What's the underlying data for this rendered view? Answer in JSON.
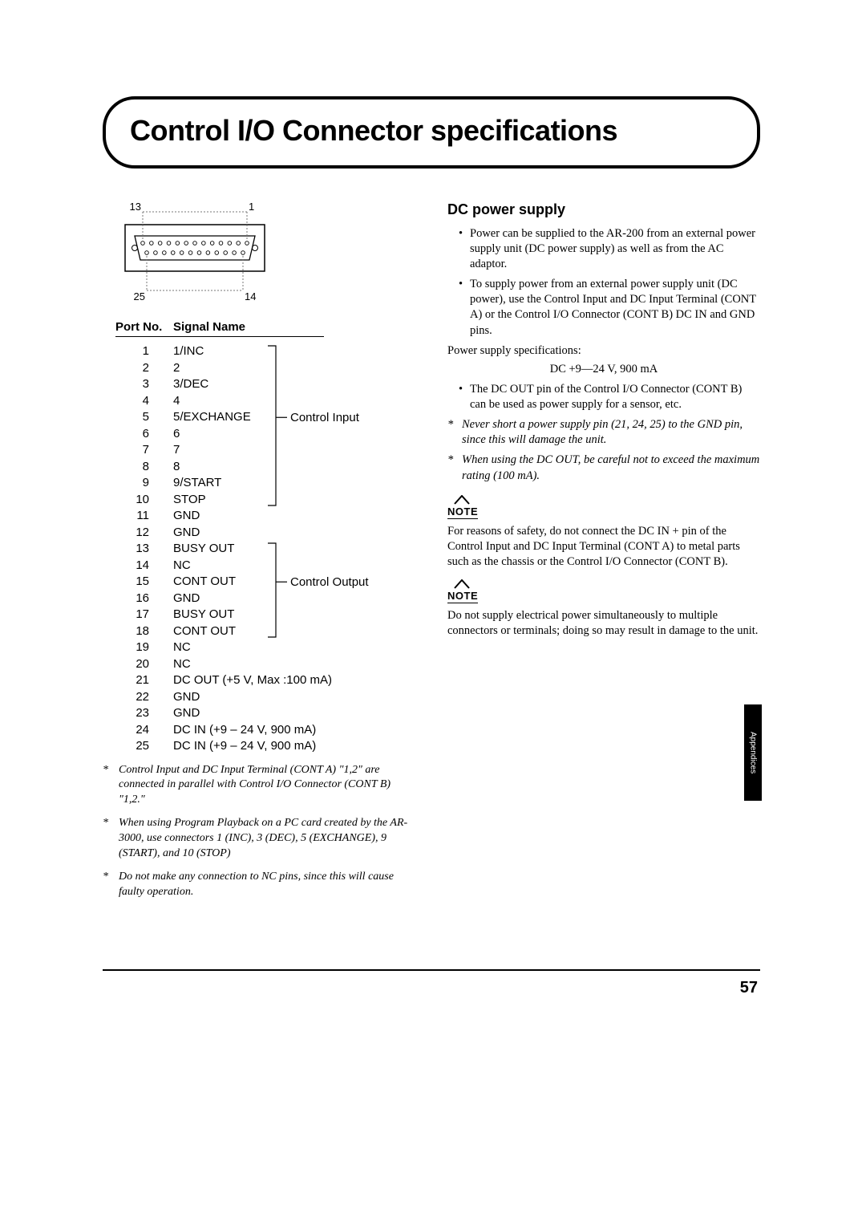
{
  "title": "Control I/O Connector specifications",
  "connector": {
    "pin_tl": "13",
    "pin_tr": "1",
    "pin_bl": "25",
    "pin_br": "14",
    "top_pins": 13,
    "bottom_pins": 12
  },
  "table": {
    "head_port": "Port No.",
    "head_signal": "Signal Name",
    "rows": [
      {
        "n": "1",
        "s": "1/INC"
      },
      {
        "n": "2",
        "s": "2"
      },
      {
        "n": "3",
        "s": "3/DEC"
      },
      {
        "n": "4",
        "s": "4"
      },
      {
        "n": "5",
        "s": "5/EXCHANGE"
      },
      {
        "n": "6",
        "s": "6"
      },
      {
        "n": "7",
        "s": "7"
      },
      {
        "n": "8",
        "s": "8"
      },
      {
        "n": "9",
        "s": "9/START"
      },
      {
        "n": "10",
        "s": "STOP"
      },
      {
        "n": "11",
        "s": "GND"
      },
      {
        "n": "12",
        "s": "GND"
      },
      {
        "n": "13",
        "s": "BUSY OUT"
      },
      {
        "n": "14",
        "s": "NC"
      },
      {
        "n": "15",
        "s": "CONT OUT"
      },
      {
        "n": "16",
        "s": "GND"
      },
      {
        "n": "17",
        "s": "BUSY OUT"
      },
      {
        "n": "18",
        "s": "CONT OUT"
      },
      {
        "n": "19",
        "s": "NC"
      },
      {
        "n": "20",
        "s": "NC"
      },
      {
        "n": "21",
        "s": "DC OUT (+5 V, Max :100 mA)"
      },
      {
        "n": "22",
        "s": "GND"
      },
      {
        "n": "23",
        "s": "GND"
      },
      {
        "n": "24",
        "s": "DC IN (+9 – 24 V, 900 mA)"
      },
      {
        "n": "25",
        "s": "DC IN (+9 – 24 V, 900 mA)"
      }
    ],
    "bracket1": {
      "label": "Control Input",
      "from": 0,
      "to": 9,
      "tick": 4
    },
    "bracket2": {
      "label": "Control Output",
      "from": 12,
      "to": 17,
      "tick": 14
    }
  },
  "footnotes": [
    "Control Input and DC Input Terminal (CONT A) \"1,2\" are connected in parallel with Control I/O Connector (CONT B) \"1,2.\"",
    "When using Program Playback on a PC card created by the AR-3000, use connectors 1 (INC), 3 (DEC), 5 (EXCHANGE), 9 (START), and 10 (STOP)",
    "Do not make any connection to NC pins, since this will cause faulty operation."
  ],
  "right": {
    "h": "DC power supply",
    "bul1": "Power can be supplied to the AR-200 from an external power supply unit (DC power supply) as well as from the AC adaptor.",
    "bul2": "To supply power from an external power supply unit (DC power), use the Control Input and DC Input Terminal (CONT A) or the Control I/O Connector (CONT B) DC IN and GND pins.",
    "spec_label": "Power supply specifications:",
    "spec_value": "DC +9—24 V, 900 mA",
    "bul3": "The DC OUT pin of the Control I/O Connector (CONT B) can be used as power supply for a sensor, etc.",
    "ast1": "Never short a power supply pin (21, 24, 25) to the GND pin, since this will damage the unit.",
    "ast2": "When using the DC OUT, be careful not to exceed the maximum rating (100 mA).",
    "note_label": "NOTE",
    "note1": "For reasons of safety, do not connect the DC IN + pin of the Control Input and DC Input Terminal (CONT A) to metal parts such as the chassis or the Control I/O Connector (CONT B).",
    "note2": "Do not supply electrical power simultaneously to multiple connectors or terminals; doing so may result in damage to the unit."
  },
  "side_tab": "Appendices",
  "page_number": "57",
  "colors": {
    "line": "#000000",
    "guide": "#999999"
  }
}
